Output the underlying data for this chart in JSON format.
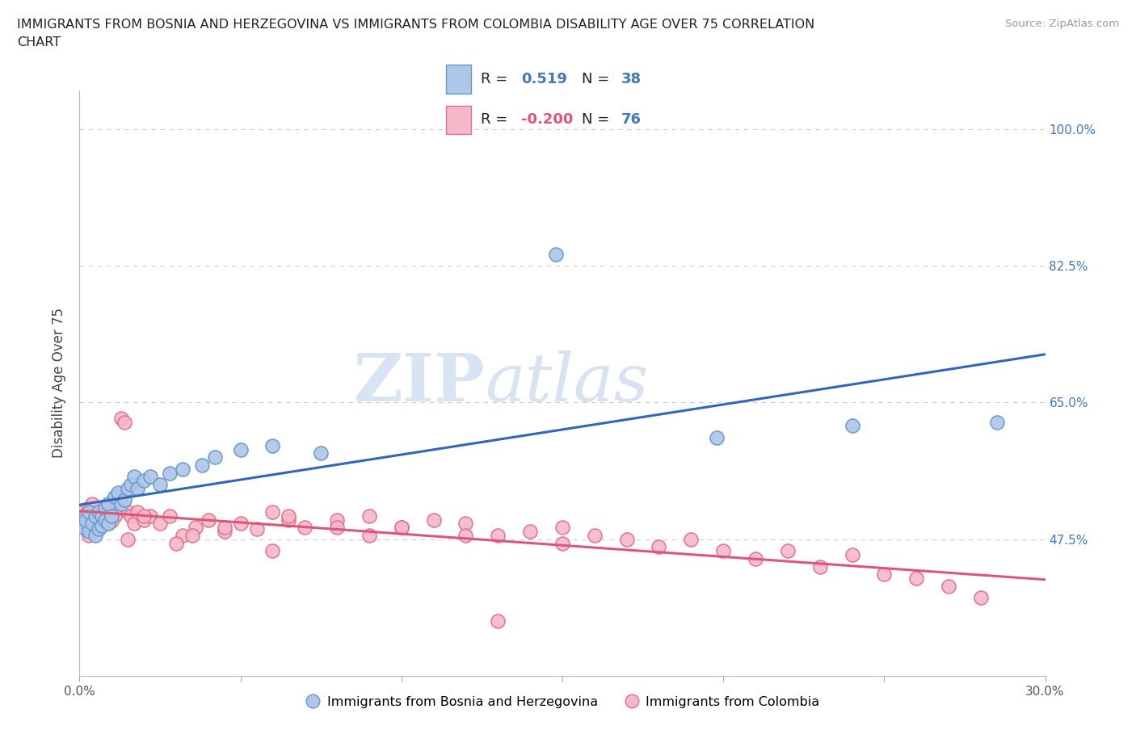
{
  "title_line1": "IMMIGRANTS FROM BOSNIA AND HERZEGOVINA VS IMMIGRANTS FROM COLOMBIA DISABILITY AGE OVER 75 CORRELATION",
  "title_line2": "CHART",
  "source_text": "Source: ZipAtlas.com",
  "ylabel": "Disability Age Over 75",
  "xlim": [
    0.0,
    0.3
  ],
  "ylim": [
    0.3,
    1.05
  ],
  "xticks": [
    0.0,
    0.3
  ],
  "xticklabels": [
    "0.0%",
    "30.0%"
  ],
  "yticks": [
    0.475,
    0.65,
    0.825,
    1.0
  ],
  "yticklabels": [
    "47.5%",
    "65.0%",
    "82.5%",
    "100.0%"
  ],
  "bosnia_color": "#aec6e8",
  "bosnia_edge": "#6699cc",
  "colombia_color": "#f5b8c8",
  "colombia_edge": "#e07090",
  "bosnia_R": 0.519,
  "bosnia_N": 38,
  "colombia_R": -0.2,
  "colombia_N": 76,
  "bosnia_line_color": "#3366bb",
  "colombia_line_color": "#dd5577",
  "watermark_zip": "ZIP",
  "watermark_atlas": "atlas",
  "legend_label_bosnia": "Immigrants from Bosnia and Herzegovina",
  "legend_label_colombia": "Immigrants from Colombia",
  "bosnia_scatter_x": [
    0.001,
    0.002,
    0.003,
    0.003,
    0.004,
    0.005,
    0.005,
    0.006,
    0.006,
    0.007,
    0.007,
    0.008,
    0.008,
    0.009,
    0.009,
    0.01,
    0.011,
    0.012,
    0.013,
    0.014,
    0.015,
    0.016,
    0.017,
    0.018,
    0.02,
    0.022,
    0.025,
    0.028,
    0.032,
    0.038,
    0.042,
    0.05,
    0.06,
    0.075,
    0.148,
    0.198,
    0.24,
    0.285
  ],
  "bosnia_scatter_y": [
    0.49,
    0.5,
    0.51,
    0.485,
    0.495,
    0.505,
    0.48,
    0.51,
    0.488,
    0.505,
    0.492,
    0.5,
    0.515,
    0.495,
    0.52,
    0.505,
    0.53,
    0.535,
    0.52,
    0.525,
    0.54,
    0.545,
    0.555,
    0.54,
    0.55,
    0.555,
    0.545,
    0.56,
    0.565,
    0.57,
    0.58,
    0.59,
    0.595,
    0.585,
    0.84,
    0.605,
    0.62,
    0.625
  ],
  "colombia_scatter_x": [
    0.001,
    0.002,
    0.002,
    0.003,
    0.003,
    0.004,
    0.004,
    0.005,
    0.005,
    0.006,
    0.006,
    0.007,
    0.007,
    0.008,
    0.008,
    0.009,
    0.009,
    0.01,
    0.011,
    0.012,
    0.013,
    0.014,
    0.015,
    0.016,
    0.017,
    0.018,
    0.02,
    0.022,
    0.025,
    0.028,
    0.032,
    0.036,
    0.04,
    0.045,
    0.05,
    0.055,
    0.06,
    0.065,
    0.07,
    0.08,
    0.09,
    0.1,
    0.11,
    0.12,
    0.13,
    0.14,
    0.15,
    0.16,
    0.17,
    0.18,
    0.19,
    0.2,
    0.21,
    0.22,
    0.23,
    0.24,
    0.25,
    0.26,
    0.27,
    0.28,
    0.003,
    0.006,
    0.01,
    0.015,
    0.02,
    0.035,
    0.045,
    0.065,
    0.08,
    0.1,
    0.12,
    0.15,
    0.03,
    0.06,
    0.09,
    0.13
  ],
  "colombia_scatter_y": [
    0.51,
    0.505,
    0.495,
    0.515,
    0.49,
    0.5,
    0.52,
    0.505,
    0.495,
    0.51,
    0.488,
    0.505,
    0.495,
    0.51,
    0.5,
    0.495,
    0.52,
    0.51,
    0.505,
    0.515,
    0.63,
    0.625,
    0.51,
    0.505,
    0.495,
    0.51,
    0.5,
    0.505,
    0.495,
    0.505,
    0.48,
    0.49,
    0.5,
    0.485,
    0.495,
    0.488,
    0.51,
    0.5,
    0.49,
    0.5,
    0.505,
    0.49,
    0.5,
    0.495,
    0.48,
    0.485,
    0.49,
    0.48,
    0.475,
    0.465,
    0.475,
    0.46,
    0.45,
    0.46,
    0.44,
    0.455,
    0.43,
    0.425,
    0.415,
    0.4,
    0.48,
    0.51,
    0.498,
    0.475,
    0.505,
    0.48,
    0.49,
    0.505,
    0.49,
    0.49,
    0.48,
    0.47,
    0.47,
    0.46,
    0.48,
    0.37
  ]
}
